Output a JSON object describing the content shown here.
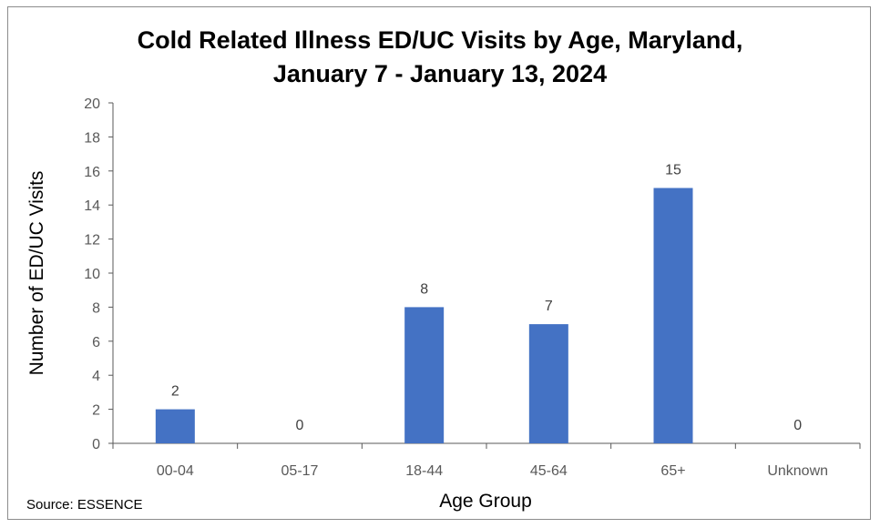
{
  "chart_data": {
    "type": "bar",
    "title_line1": "Cold Related Illness ED/UC Visits by Age, Maryland,",
    "title_line2": "January 7 - January 13, 2024",
    "xlabel": "Age Group",
    "ylabel": "Number of ED/UC Visits",
    "categories": [
      "00-04",
      "05-17",
      "18-44",
      "45-64",
      "65+",
      "Unknown"
    ],
    "values": [
      2,
      0,
      8,
      7,
      15,
      0
    ],
    "ylim": [
      0,
      20
    ],
    "yticks": [
      0,
      2,
      4,
      6,
      8,
      10,
      12,
      14,
      16,
      18,
      20
    ],
    "bar_color": "#4472C4",
    "grid": false,
    "legend": "none",
    "source": "Source: ESSENCE"
  }
}
